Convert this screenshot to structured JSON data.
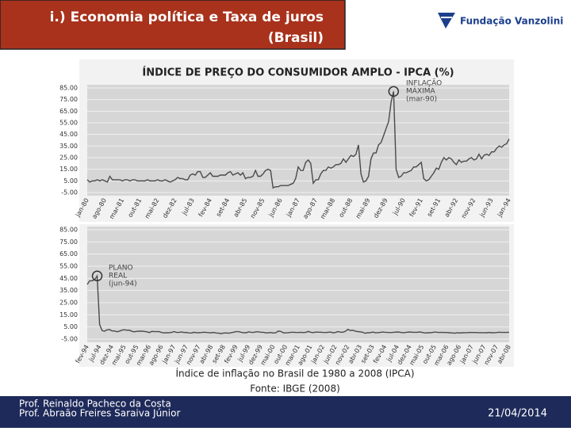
{
  "header": {
    "title": [
      "i.) Economia política e Taxa de juros",
      "(Brasil)"
    ],
    "logo": "Fundação Vanzolini"
  },
  "chart_data": [
    {
      "type": "line",
      "title": "ÍNDICE DE PREÇO DO CONSUMIDOR AMPLO - IPCA (%)",
      "color": "#4a4a4a",
      "annotation": [
        "INFLAÇÃO",
        "MÁXIMA",
        "(mar-90)"
      ],
      "ylim": [
        -5,
        85
      ],
      "yticks": [
        {
          "value": -5,
          "label": "-5.00"
        },
        {
          "value": 5,
          "label": "5.00"
        },
        {
          "value": 15,
          "label": "15.00"
        },
        {
          "value": 25,
          "label": "25.00"
        },
        {
          "value": 35,
          "label": "35.00"
        },
        {
          "value": 45,
          "label": "45.00"
        },
        {
          "value": 55,
          "label": "55.00"
        },
        {
          "value": 65,
          "label": "65.00"
        },
        {
          "value": 75,
          "label": "75.00"
        },
        {
          "value": 85,
          "label": "85.00"
        }
      ],
      "categories": [
        "jan-80",
        null,
        null,
        null,
        null,
        null,
        null,
        "ago-80",
        null,
        null,
        null,
        null,
        null,
        null,
        "mar-81",
        null,
        null,
        null,
        null,
        null,
        null,
        "out-81",
        null,
        null,
        null,
        null,
        null,
        null,
        "mai-82",
        null,
        null,
        null,
        null,
        null,
        null,
        "dez-82",
        null,
        null,
        null,
        null,
        null,
        null,
        "jul-83",
        null,
        null,
        null,
        null,
        null,
        null,
        "fev-84",
        null,
        null,
        null,
        null,
        null,
        null,
        "set-84",
        null,
        null,
        null,
        null,
        null,
        null,
        "abr-85",
        null,
        null,
        null,
        null,
        null,
        null,
        "nov-85",
        null,
        null,
        null,
        null,
        null,
        null,
        "jun-86",
        null,
        null,
        null,
        null,
        null,
        null,
        "jan-87",
        null,
        null,
        null,
        null,
        null,
        null,
        "ago-87",
        null,
        null,
        null,
        null,
        null,
        null,
        "mar-88",
        null,
        null,
        null,
        null,
        null,
        null,
        "out-88",
        null,
        null,
        null,
        null,
        null,
        null,
        "mai-89",
        null,
        null,
        null,
        null,
        null,
        null,
        "dez-89",
        null,
        null,
        null,
        null,
        null,
        null,
        "jul-90",
        null,
        null,
        null,
        null,
        null,
        null,
        "fev-91",
        null,
        null,
        null,
        null,
        null,
        null,
        "set-91",
        null,
        null,
        null,
        null,
        null,
        null,
        "abr-92",
        null,
        null,
        null,
        null,
        null,
        null,
        "nov-92",
        null,
        null,
        null,
        null,
        null,
        null,
        "jun-93",
        null,
        null,
        null,
        null,
        null,
        null,
        "jan-94"
      ],
      "values": [
        6,
        4,
        5,
        5,
        6,
        5,
        6,
        5,
        4,
        9,
        6,
        6,
        6,
        6,
        5,
        6,
        6,
        5,
        6,
        6,
        5,
        5,
        5,
        5,
        6,
        5,
        5,
        5,
        6,
        5,
        5,
        6,
        5,
        4,
        5,
        6,
        8,
        7,
        7,
        6,
        6,
        10,
        11,
        10,
        13,
        13,
        8,
        8,
        10,
        12,
        9,
        9,
        9,
        10,
        10,
        10,
        12,
        13,
        10,
        11,
        12,
        10,
        12,
        7,
        8,
        8,
        9,
        14,
        9,
        9,
        11,
        14,
        15,
        14,
        -1,
        0,
        0,
        1,
        1,
        1,
        1,
        2,
        3,
        7,
        17,
        14,
        14,
        21,
        23,
        20,
        3,
        6,
        6,
        11,
        14,
        14,
        17,
        16,
        17,
        19,
        19,
        20,
        24,
        21,
        24,
        27,
        26,
        28,
        36,
        11,
        4,
        5,
        9,
        24,
        29,
        29,
        36,
        38,
        44,
        50,
        56,
        73,
        82,
        15,
        8,
        9,
        12,
        12,
        13,
        14,
        17,
        17,
        19,
        21,
        7,
        5,
        6,
        9,
        12,
        16,
        15,
        21,
        25,
        23,
        25,
        24,
        21,
        19,
        23,
        21,
        22,
        22,
        24,
        25,
        23,
        24,
        28,
        24,
        27,
        28,
        27,
        30,
        30,
        33,
        35,
        34,
        36,
        37,
        41
      ]
    },
    {
      "type": "line",
      "color": "#4a4a4a",
      "annotation": [
        "PLANO",
        "REAL",
        "(jun-94)"
      ],
      "ylim": [
        -5,
        85
      ],
      "yticks": [
        {
          "value": -5,
          "label": "-5.00"
        },
        {
          "value": 5,
          "label": "5.00"
        },
        {
          "value": 15,
          "label": "15.00"
        },
        {
          "value": 25,
          "label": "25.00"
        },
        {
          "value": 35,
          "label": "35.00"
        },
        {
          "value": 45,
          "label": "45.00"
        },
        {
          "value": 55,
          "label": "55.00"
        },
        {
          "value": 65,
          "label": "65.00"
        },
        {
          "value": 75,
          "label": "75.00"
        },
        {
          "value": 85,
          "label": "85.00"
        }
      ],
      "categories": [
        "fev-94",
        null,
        null,
        null,
        null,
        "jul-94",
        null,
        null,
        null,
        null,
        "dez-94",
        null,
        null,
        null,
        null,
        "mai-95",
        null,
        null,
        null,
        null,
        "out-95",
        null,
        null,
        null,
        null,
        "mar-96",
        null,
        null,
        null,
        null,
        "ago-96",
        null,
        null,
        null,
        null,
        "jan-97",
        null,
        null,
        null,
        null,
        "jun-97",
        null,
        null,
        null,
        null,
        "nov-97",
        null,
        null,
        null,
        null,
        "abr-98",
        null,
        null,
        null,
        null,
        "set-98",
        null,
        null,
        null,
        null,
        "fev-99",
        null,
        null,
        null,
        null,
        "jul-99",
        null,
        null,
        null,
        null,
        "dez-99",
        null,
        null,
        null,
        null,
        "mai-00",
        null,
        null,
        null,
        null,
        "out-00",
        null,
        null,
        null,
        null,
        "mar-01",
        null,
        null,
        null,
        null,
        "ago-01",
        null,
        null,
        null,
        null,
        "jan-02",
        null,
        null,
        null,
        null,
        "jun-02",
        null,
        null,
        null,
        null,
        "nov-02",
        null,
        null,
        null,
        null,
        "abr-03",
        null,
        null,
        null,
        null,
        "set-03",
        null,
        null,
        null,
        null,
        "fev-04",
        null,
        null,
        null,
        null,
        "jul-04",
        null,
        null,
        null,
        null,
        "dez-04",
        null,
        null,
        null,
        null,
        "mai-05",
        null,
        null,
        null,
        null,
        "out-05",
        null,
        null,
        null,
        null,
        "mar-06",
        null,
        null,
        null,
        null,
        "ago-06",
        null,
        null,
        null,
        null,
        "jan-07",
        null,
        null,
        null,
        null,
        "jun-07",
        null,
        null,
        null,
        null,
        "nov-07",
        null,
        null,
        null,
        null,
        "abr-08"
      ],
      "values": [
        40,
        43,
        43,
        44,
        47,
        7,
        2,
        1.5,
        2.6,
        2.8,
        1.7,
        1.7,
        1.0,
        1.6,
        2.4,
        2.7,
        2.3,
        2.4,
        1.4,
        1.0,
        1.4,
        1.5,
        1.6,
        1.3,
        1.0,
        0.4,
        1.3,
        1.2,
        1.1,
        1.1,
        0.4,
        0.1,
        0.2,
        0.3,
        0.5,
        1.2,
        0.5,
        0.5,
        0.9,
        0.4,
        0.5,
        0.1,
        0.0,
        0.6,
        0.3,
        0.2,
        0.4,
        0.7,
        0.5,
        0.3,
        0.2,
        0.5,
        0.0,
        -0.1,
        -0.5,
        0.0,
        0.0,
        -0.1,
        0.3,
        0.7,
        1.1,
        1.1,
        0.6,
        0.3,
        0.2,
        1.0,
        0.6,
        0.5,
        1.0,
        1.0,
        0.6,
        0.6,
        0.1,
        0.2,
        0.4,
        0.0,
        0.2,
        1.6,
        1.3,
        0.2,
        0.1,
        0.3,
        0.6,
        0.6,
        0.5,
        0.4,
        0.6,
        0.4,
        0.5,
        1.3,
        0.7,
        0.3,
        0.8,
        0.7,
        0.7,
        0.5,
        0.4,
        0.6,
        0.8,
        0.2,
        0.4,
        1.2,
        0.7,
        0.7,
        1.3,
        3.0,
        2.1,
        2.3,
        1.6,
        1.2,
        1.0,
        0.6,
        -0.2,
        0.2,
        0.3,
        0.8,
        0.3,
        0.3,
        0.5,
        0.8,
        0.6,
        0.5,
        0.4,
        0.5,
        0.7,
        0.9,
        0.7,
        0.3,
        0.4,
        0.7,
        0.9,
        0.6,
        0.6,
        0.6,
        0.9,
        0.5,
        0.0,
        0.3,
        0.2,
        0.4,
        0.8,
        0.6,
        0.4,
        0.6,
        0.4,
        0.4,
        0.2,
        0.1,
        -0.2,
        0.2,
        0.0,
        0.2,
        0.3,
        0.3,
        0.5,
        0.4,
        0.4,
        0.4,
        0.3,
        0.3,
        0.3,
        0.2,
        0.5,
        0.2,
        0.3,
        0.4,
        0.7,
        0.5,
        0.5,
        0.5,
        0.6
      ]
    }
  ],
  "caption": [
    "Índice de inflação no Brasil de 1980 a 2008 (IPCA)",
    "Fonte: IBGE (2008)"
  ],
  "footer": {
    "authors": [
      "Prof. Reinaldo Pacheco da Costa",
      "Prof. Abraão Freires Saraiva Júnior"
    ],
    "date": "21/04/2014"
  }
}
